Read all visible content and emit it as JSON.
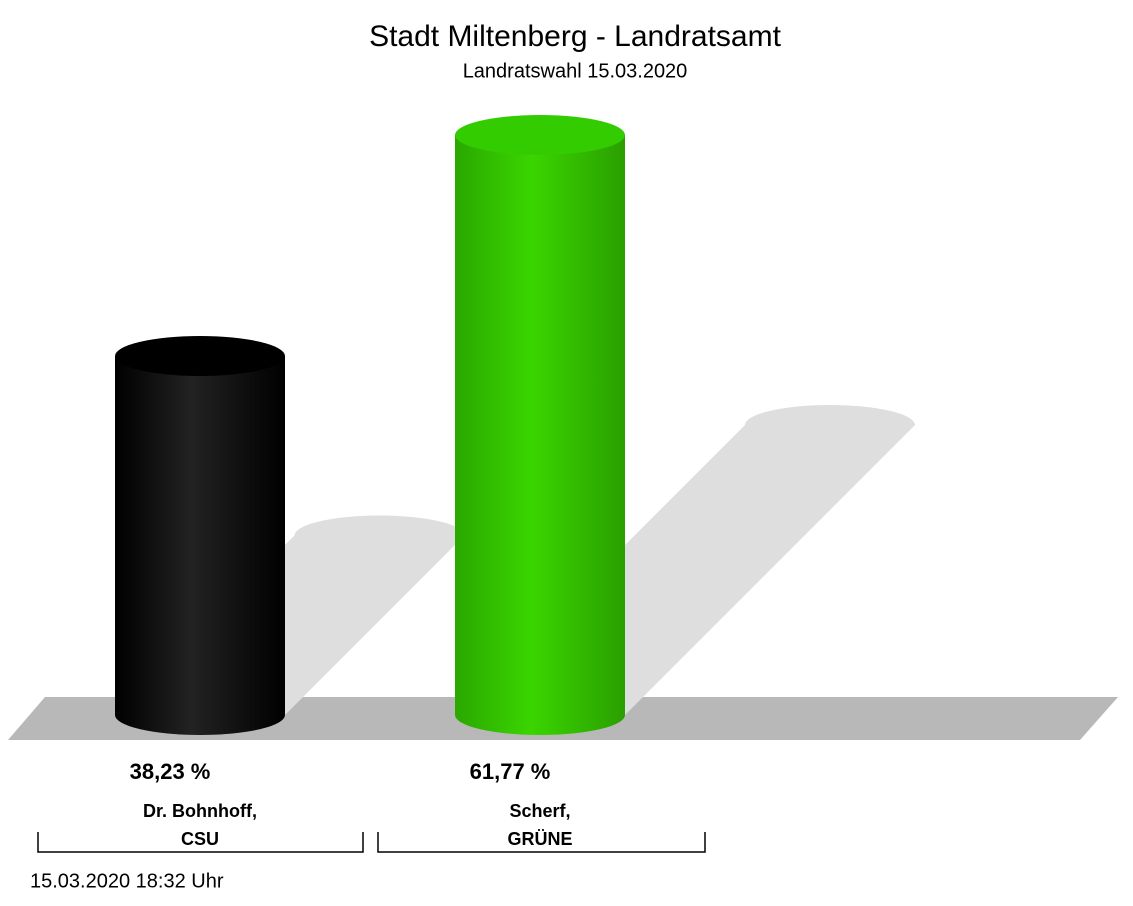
{
  "chart_data": {
    "type": "bar",
    "title": "Stadt Miltenberg - Landratsamt",
    "subtitle": "Landratswahl 15.03.2020",
    "categories": [
      [
        "Dr. Bohnhoff,",
        "CSU"
      ],
      [
        "Scherf,",
        "GRÜNE"
      ]
    ],
    "values": [
      38.23,
      61.77
    ],
    "value_labels": [
      "38,23 %",
      "61,77 %"
    ],
    "colors": [
      "#000000",
      "#33cc00"
    ],
    "footnote": "15.03.2020 18:32 Uhr"
  }
}
